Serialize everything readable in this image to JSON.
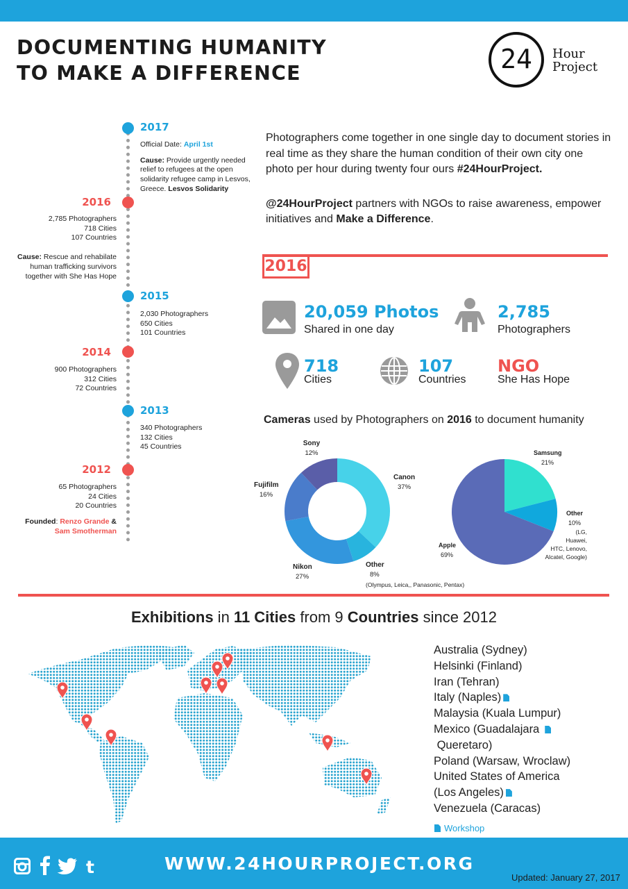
{
  "header": {
    "title_line1": "DOCUMENTING HUMANITY",
    "title_line2": "TO MAKE A DIFFERENCE",
    "logo_number": "24",
    "logo_word1": "Hour",
    "logo_word2": "Project"
  },
  "timeline": {
    "y2017": {
      "year": "2017",
      "official_label": "Official Date: ",
      "official_date": "April 1st",
      "cause_label": "Cause:",
      "cause_text": " Provide urgently needed relief to refugees at the open solidarity refugee camp in Lesvos, Greece. ",
      "cause_bold": "Lesvos Solidarity"
    },
    "y2016": {
      "year": "2016",
      "photographers": "2,785 Photographers",
      "cities": "718 Cities",
      "countries": "107 Countries",
      "cause_label": "Cause:",
      "cause_text": " Rescue and rehabilate human trafficking survivors together with She Has Hope"
    },
    "y2015": {
      "year": "2015",
      "photographers": "2,030 Photographers",
      "cities": "650 Cities",
      "countries": "101 Countries"
    },
    "y2014": {
      "year": "2014",
      "photographers": "900 Photographers",
      "cities": "312 Cities",
      "countries": "72 Countries"
    },
    "y2013": {
      "year": "2013",
      "photographers": "340 Photographers",
      "cities": "132 Cities",
      "countries": "45 Countries"
    },
    "y2012": {
      "year": "2012",
      "photographers": "65 Photographers",
      "cities": "24 Cities",
      "countries": "20 Countries",
      "founded_label": "Founded",
      "founder1": "Renzo Grande",
      "amp": " &",
      "founder2": "Sam  Smotherman"
    }
  },
  "intro": {
    "p1": "Photographers come together in one single day to document stories in real time as they  share the human condition of their own city one photo per hour during twenty four ours ",
    "p1_tag": "#24HourProject.",
    "p2_handle": "@24HourProject",
    "p2_text": " partners with NGOs to raise awareness, empower initiatives and ",
    "p2_bold": "Make a Difference",
    "p2_end": "."
  },
  "stats2016": {
    "badge": "2016",
    "photos_value": "20,059 Photos",
    "photos_label": "Shared in one day",
    "photographers_value": "2,785",
    "photographers_label": "Photographers",
    "cities_value": "718",
    "cities_label": "Cities",
    "countries_value": "107",
    "countries_label": "Countries",
    "ngo_value": "NGO",
    "ngo_label": "She Has Hope"
  },
  "cameras": {
    "title_bold1": "Cameras",
    "title_mid": " used by Photographers on ",
    "title_bold2": "2016",
    "title_end": " to document humanity",
    "other_note": "(Olympus, Leica,, Panasonic, Pentax)",
    "phone_other_note_1": "(LG,",
    "phone_other_note_2": "Huawei,",
    "phone_other_note_3": "HTC, Lenovo,",
    "phone_other_note_4": "Alcatel, Google)"
  },
  "chart_data": [
    {
      "type": "pie",
      "variant": "donut",
      "categories": [
        "Canon",
        "Other",
        "Nikon",
        "Fujifilm",
        "Sony"
      ],
      "values": [
        37,
        8,
        27,
        16,
        12
      ],
      "labels": [
        "37%",
        "8%",
        "27%",
        "16%",
        "12%"
      ],
      "colors": [
        "#47d2e9",
        "#28b4de",
        "#3396dd",
        "#4a7ccb",
        "#5a5ea8"
      ]
    },
    {
      "type": "pie",
      "categories": [
        "Samsung",
        "Other",
        "Apple"
      ],
      "values": [
        21,
        10,
        69
      ],
      "labels": [
        "21%",
        "10%",
        "69%"
      ],
      "colors": [
        "#30e0cf",
        "#10a8dd",
        "#5a6bb7"
      ]
    }
  ],
  "exhibitions": {
    "t1": "Exhibitions",
    "t2": " in ",
    "t3": "11 Cities",
    "t4": " from 9 ",
    "t5": "Countries",
    "t6": " since 2012",
    "cities": [
      "Australia (Sydney)",
      "Helsinki (Finland)",
      "Iran (Tehran)",
      "Italy (Naples)",
      "Malaysia (Kuala Lumpur)",
      "Mexico (Guadalajara",
      " Queretaro)",
      "Poland (Warsaw, Wroclaw)",
      "United States of America",
      "(Los Angeles)",
      "Venezuela (Caracas)"
    ],
    "workshop": "Workshop"
  },
  "footer": {
    "website": "WWW.24HOURPROJECT.ORG",
    "updated": "Updated: January 27, 2017",
    "social": [
      "instagram-icon",
      "facebook-icon",
      "twitter-icon",
      "tumblr-icon"
    ]
  }
}
